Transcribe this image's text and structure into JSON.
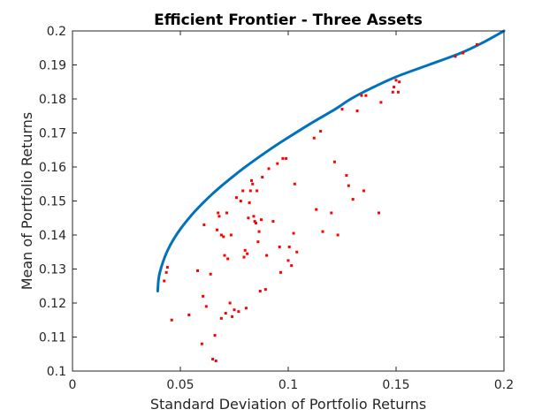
{
  "chart_data": {
    "type": "scatter",
    "title": "Efficient Frontier - Three Assets",
    "xlabel": "Standard Deviation of Portfolio Returns",
    "ylabel": "Mean of Portfolio Returns",
    "xlim": [
      0,
      0.2
    ],
    "ylim": [
      0.1,
      0.2
    ],
    "grid": false,
    "legend": "none",
    "x_ticks": [
      "0",
      "0.05",
      "0.1",
      "0.15",
      "0.2"
    ],
    "y_ticks": [
      "0.1",
      "0.11",
      "0.12",
      "0.13",
      "0.14",
      "0.15",
      "0.16",
      "0.17",
      "0.18",
      "0.19",
      "0.2"
    ],
    "colors": {
      "frontier": "#0072bd",
      "portfolios": "#ff0000"
    },
    "series": [
      {
        "kind": "line",
        "x": [
          0.0395,
          0.0399,
          0.0407,
          0.0419,
          0.0434,
          0.0453,
          0.0476,
          0.0503,
          0.0534,
          0.0568,
          0.0606,
          0.0647,
          0.0692,
          0.074,
          0.079,
          0.0844,
          0.09,
          0.0959,
          0.1021,
          0.1084,
          0.115,
          0.1218,
          0.129,
          0.138,
          0.15,
          0.165,
          0.18,
          0.19,
          0.2
        ],
        "y": [
          0.1235,
          0.127,
          0.1295,
          0.132,
          0.1345,
          0.137,
          0.1395,
          0.142,
          0.1445,
          0.147,
          0.1495,
          0.152,
          0.1545,
          0.157,
          0.1595,
          0.162,
          0.1645,
          0.167,
          0.1695,
          0.172,
          0.1745,
          0.177,
          0.18,
          0.183,
          0.1865,
          0.19,
          0.1935,
          0.1965,
          0.2
        ]
      },
      {
        "kind": "points",
        "points": [
          [
            0.0425,
            0.1265
          ],
          [
            0.0435,
            0.129
          ],
          [
            0.044,
            0.1305
          ],
          [
            0.046,
            0.115
          ],
          [
            0.054,
            0.1165
          ],
          [
            0.058,
            0.1295
          ],
          [
            0.06,
            0.108
          ],
          [
            0.0605,
            0.122
          ],
          [
            0.061,
            0.143
          ],
          [
            0.062,
            0.119
          ],
          [
            0.064,
            0.1285
          ],
          [
            0.065,
            0.1035
          ],
          [
            0.066,
            0.1105
          ],
          [
            0.0665,
            0.103
          ],
          [
            0.067,
            0.1415
          ],
          [
            0.0675,
            0.1465
          ],
          [
            0.068,
            0.1455
          ],
          [
            0.069,
            0.14
          ],
          [
            0.069,
            0.1155
          ],
          [
            0.07,
            0.1395
          ],
          [
            0.0705,
            0.134
          ],
          [
            0.071,
            0.117
          ],
          [
            0.0715,
            0.1465
          ],
          [
            0.072,
            0.133
          ],
          [
            0.073,
            0.12
          ],
          [
            0.0735,
            0.14
          ],
          [
            0.074,
            0.116
          ],
          [
            0.075,
            0.118
          ],
          [
            0.076,
            0.151
          ],
          [
            0.077,
            0.1175
          ],
          [
            0.078,
            0.15
          ],
          [
            0.079,
            0.153
          ],
          [
            0.0795,
            0.1335
          ],
          [
            0.08,
            0.1355
          ],
          [
            0.0805,
            0.1185
          ],
          [
            0.081,
            0.1345
          ],
          [
            0.0815,
            0.145
          ],
          [
            0.082,
            0.1495
          ],
          [
            0.0825,
            0.153
          ],
          [
            0.083,
            0.156
          ],
          [
            0.0835,
            0.155
          ],
          [
            0.084,
            0.1455
          ],
          [
            0.0845,
            0.144
          ],
          [
            0.085,
            0.1435
          ],
          [
            0.0855,
            0.153
          ],
          [
            0.086,
            0.138
          ],
          [
            0.0865,
            0.141
          ],
          [
            0.087,
            0.1235
          ],
          [
            0.0875,
            0.1445
          ],
          [
            0.088,
            0.157
          ],
          [
            0.0895,
            0.124
          ],
          [
            0.09,
            0.134
          ],
          [
            0.091,
            0.1595
          ],
          [
            0.093,
            0.144
          ],
          [
            0.095,
            0.161
          ],
          [
            0.096,
            0.1365
          ],
          [
            0.0965,
            0.129
          ],
          [
            0.0975,
            0.1625
          ],
          [
            0.099,
            0.1625
          ],
          [
            0.1,
            0.1325
          ],
          [
            0.1005,
            0.1365
          ],
          [
            0.1015,
            0.131
          ],
          [
            0.1025,
            0.1405
          ],
          [
            0.103,
            0.155
          ],
          [
            0.104,
            0.135
          ],
          [
            0.112,
            0.1685
          ],
          [
            0.113,
            0.1475
          ],
          [
            0.115,
            0.1705
          ],
          [
            0.116,
            0.141
          ],
          [
            0.12,
            0.1465
          ],
          [
            0.1215,
            0.1615
          ],
          [
            0.123,
            0.14
          ],
          [
            0.125,
            0.177
          ],
          [
            0.127,
            0.1575
          ],
          [
            0.128,
            0.1545
          ],
          [
            0.13,
            0.1505
          ],
          [
            0.132,
            0.1765
          ],
          [
            0.134,
            0.181
          ],
          [
            0.135,
            0.153
          ],
          [
            0.136,
            0.181
          ],
          [
            0.142,
            0.1465
          ],
          [
            0.143,
            0.179
          ],
          [
            0.1485,
            0.182
          ],
          [
            0.149,
            0.1835
          ],
          [
            0.15,
            0.1855
          ],
          [
            0.151,
            0.182
          ],
          [
            0.1515,
            0.185
          ],
          [
            0.1775,
            0.1925
          ],
          [
            0.181,
            0.1935
          ],
          [
            0.1875,
            0.196
          ]
        ]
      }
    ]
  }
}
